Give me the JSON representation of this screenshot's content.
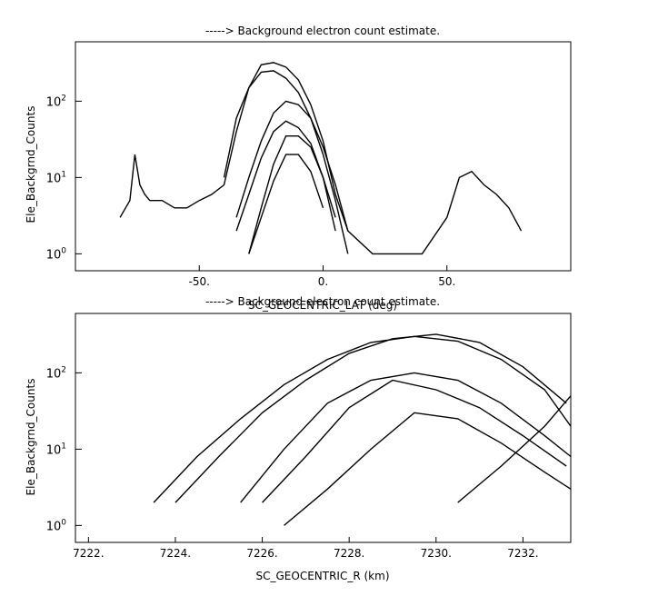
{
  "chart_data": [
    {
      "type": "scatter",
      "title": "-----> Background electron count estimate.",
      "xlabel": "SC_GEOCENTRIC_LAT (deg)",
      "ylabel": "Ele_Backgrnd_Counts",
      "xlim": [
        -100,
        100
      ],
      "ylim": [
        0.6,
        600
      ],
      "yscale": "log",
      "grid": false,
      "x_ticks": [
        -50,
        0,
        50
      ],
      "x_tick_labels": [
        "-50.",
        "0.",
        "50."
      ],
      "y_ticks": [
        1,
        10,
        100
      ],
      "y_tick_labels": [
        "10^0",
        "10^1",
        "10^2"
      ],
      "series": [
        {
          "x": [
            -82,
            -78,
            -76,
            -74,
            -72,
            -70,
            -65,
            -60,
            -55,
            -50,
            -45,
            -40,
            -35,
            -30,
            -25,
            -20,
            -15,
            -10,
            -5,
            0,
            5,
            10,
            20,
            30,
            40,
            50,
            55,
            60,
            65,
            70,
            75,
            80
          ],
          "values": [
            3,
            5,
            20,
            8,
            6,
            5,
            5,
            4,
            4,
            5,
            6,
            8,
            40,
            150,
            300,
            320,
            280,
            190,
            90,
            30,
            6,
            2,
            1,
            1,
            1,
            3,
            10,
            12,
            8,
            6,
            4,
            2
          ]
        },
        {
          "x": [
            -40,
            -35,
            -30,
            -25,
            -20,
            -15,
            -10,
            -5,
            0,
            5,
            10
          ],
          "values": [
            10,
            60,
            150,
            240,
            250,
            200,
            130,
            60,
            20,
            5,
            1
          ]
        },
        {
          "x": [
            -35,
            -30,
            -25,
            -20,
            -15,
            -10,
            -5,
            0,
            5,
            10
          ],
          "values": [
            3,
            10,
            30,
            70,
            100,
            90,
            60,
            25,
            8,
            2
          ]
        },
        {
          "x": [
            -35,
            -30,
            -25,
            -20,
            -15,
            -10,
            -5,
            0,
            5
          ],
          "values": [
            2,
            6,
            18,
            40,
            55,
            45,
            28,
            10,
            3
          ]
        },
        {
          "x": [
            -30,
            -25,
            -20,
            -15,
            -10,
            -5,
            0,
            5
          ],
          "values": [
            1,
            4,
            15,
            35,
            35,
            25,
            10,
            2
          ]
        },
        {
          "x": [
            -30,
            -25,
            -20,
            -15,
            -10,
            -5,
            0
          ],
          "values": [
            1,
            3,
            9,
            20,
            20,
            12,
            4
          ]
        }
      ]
    },
    {
      "type": "scatter",
      "title": "-----> Background electron count estimate.",
      "xlabel": "SC_GEOCENTRIC_R (km)",
      "ylabel": "Ele_Backgrnd_Counts",
      "xlim": [
        7221.7,
        7233.1
      ],
      "ylim": [
        0.6,
        600
      ],
      "yscale": "log",
      "grid": false,
      "x_ticks": [
        7222,
        7224,
        7226,
        7228,
        7230,
        7232
      ],
      "x_tick_labels": [
        "7222.",
        "7224.",
        "7226.",
        "7228.",
        "7230.",
        "7232."
      ],
      "y_ticks": [
        1,
        10,
        100
      ],
      "y_tick_labels": [
        "10^0",
        "10^1",
        "10^2"
      ],
      "series": [
        {
          "x": [
            7223.5,
            7224.5,
            7225.5,
            7226.5,
            7227.5,
            7228.5,
            7229.5,
            7230.5,
            7231.5,
            7232.5,
            7233.1
          ],
          "values": [
            2,
            8,
            25,
            70,
            150,
            250,
            300,
            260,
            150,
            60,
            20
          ]
        },
        {
          "x": [
            7224.0,
            7225.0,
            7226.0,
            7227.0,
            7228.0,
            7229.0,
            7230.0,
            7231.0,
            7232.0,
            7233.0
          ],
          "values": [
            2,
            8,
            30,
            80,
            180,
            280,
            320,
            250,
            120,
            40
          ]
        },
        {
          "x": [
            7225.5,
            7226.5,
            7227.5,
            7228.5,
            7229.5,
            7230.5,
            7231.5,
            7232.5,
            7233.1
          ],
          "values": [
            2,
            10,
            40,
            80,
            100,
            80,
            40,
            15,
            8
          ]
        },
        {
          "x": [
            7226.0,
            7227.0,
            7228.0,
            7229.0,
            7230.0,
            7231.0,
            7232.0,
            7233.0
          ],
          "values": [
            2,
            8,
            35,
            80,
            60,
            35,
            15,
            6
          ]
        },
        {
          "x": [
            7226.5,
            7227.5,
            7228.5,
            7229.5,
            7230.5,
            7231.5,
            7232.5,
            7233.1
          ],
          "values": [
            1,
            3,
            10,
            30,
            25,
            12,
            5,
            3
          ]
        },
        {
          "x": [
            7230.5,
            7231.5,
            7232.5,
            7233.1
          ],
          "values": [
            2,
            6,
            20,
            50
          ]
        }
      ]
    }
  ]
}
